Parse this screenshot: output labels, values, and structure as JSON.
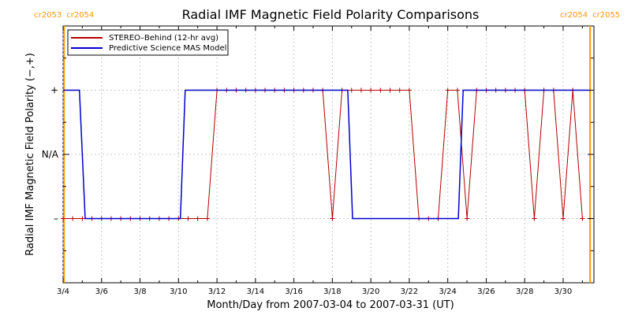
{
  "chart_data": {
    "type": "line",
    "title": "Radial IMF Magnetic Field Polarity Comparisons",
    "xlabel": "Month/Day from 2007-03-04 to 2007-03-31 (UT)",
    "ylabel": "Radial IMF Magnetic Field Polarity (−,+)",
    "xlim": [
      "2007-03-04",
      "2007-03-31"
    ],
    "ylim": [
      -2,
      2
    ],
    "y_ticks": [
      {
        "value": 1,
        "label": "+"
      },
      {
        "value": 0,
        "label": "N/A"
      },
      {
        "value": -1,
        "label": "–"
      }
    ],
    "x_ticks": [
      {
        "day": 4,
        "label": "3/4"
      },
      {
        "day": 6,
        "label": "3/6"
      },
      {
        "day": 8,
        "label": "3/8"
      },
      {
        "day": 10,
        "label": "3/10"
      },
      {
        "day": 12,
        "label": "3/12"
      },
      {
        "day": 14,
        "label": "3/14"
      },
      {
        "day": 16,
        "label": "3/16"
      },
      {
        "day": 18,
        "label": "3/18"
      },
      {
        "day": 20,
        "label": "3/20"
      },
      {
        "day": 22,
        "label": "3/22"
      },
      {
        "day": 24,
        "label": "3/24"
      },
      {
        "day": 26,
        "label": "3/26"
      },
      {
        "day": 28,
        "label": "3/28"
      },
      {
        "day": 30,
        "label": "3/30"
      }
    ],
    "rotation_markers": [
      {
        "day": 4.05,
        "left_label": "cr2053",
        "right_label": "cr2054",
        "color": "#ff9900"
      },
      {
        "day": 31.4,
        "left_label": "cr2054",
        "right_label": "cr2055",
        "color": "#ff9900"
      }
    ],
    "legend": {
      "position": "top-left"
    },
    "series": [
      {
        "name": "STEREO–Behind (12-hr avg)",
        "color": "#b30000",
        "marker": "plus",
        "points": [
          [
            4.0,
            -1
          ],
          [
            4.5,
            -1
          ],
          [
            5.0,
            -1
          ],
          [
            5.5,
            -1
          ],
          [
            6.0,
            -1
          ],
          [
            6.5,
            -1
          ],
          [
            7.0,
            -1
          ],
          [
            7.5,
            -1
          ],
          [
            8.0,
            -1
          ],
          [
            8.5,
            -1
          ],
          [
            9.0,
            -1
          ],
          [
            9.5,
            -1
          ],
          [
            10.0,
            -1
          ],
          [
            10.5,
            -1
          ],
          [
            11.0,
            -1
          ],
          [
            11.5,
            -1
          ],
          [
            12.0,
            1
          ],
          [
            12.5,
            1
          ],
          [
            13.0,
            1
          ],
          [
            13.5,
            1
          ],
          [
            14.0,
            1
          ],
          [
            14.5,
            1
          ],
          [
            15.0,
            1
          ],
          [
            15.5,
            1
          ],
          [
            16.0,
            1
          ],
          [
            16.5,
            1
          ],
          [
            17.0,
            1
          ],
          [
            17.5,
            1
          ],
          [
            18.0,
            -1
          ],
          [
            18.5,
            1
          ],
          [
            19.0,
            1
          ],
          [
            19.5,
            1
          ],
          [
            20.0,
            1
          ],
          [
            20.5,
            1
          ],
          [
            21.0,
            1
          ],
          [
            21.5,
            1
          ],
          [
            22.0,
            1
          ],
          [
            22.5,
            -1
          ],
          [
            23.0,
            -1
          ],
          [
            23.5,
            -1
          ],
          [
            24.0,
            1
          ],
          [
            24.5,
            1
          ],
          [
            25.0,
            -1
          ],
          [
            25.5,
            1
          ],
          [
            26.0,
            1
          ],
          [
            26.5,
            1
          ],
          [
            27.0,
            1
          ],
          [
            27.5,
            1
          ],
          [
            28.0,
            1
          ],
          [
            28.5,
            -1
          ],
          [
            29.0,
            1
          ],
          [
            29.5,
            1
          ],
          [
            30.0,
            -1
          ],
          [
            30.5,
            1
          ],
          [
            31.0,
            -1
          ]
        ]
      },
      {
        "name": "Predictive Science MAS Model",
        "color": "#0000cc",
        "marker": "none",
        "points": [
          [
            4.0,
            1
          ],
          [
            4.85,
            1
          ],
          [
            5.15,
            -1
          ],
          [
            10.1,
            -1
          ],
          [
            10.35,
            1
          ],
          [
            18.8,
            1
          ],
          [
            19.05,
            -1
          ],
          [
            24.55,
            -1
          ],
          [
            24.8,
            1
          ],
          [
            31.4,
            1
          ]
        ]
      }
    ]
  }
}
